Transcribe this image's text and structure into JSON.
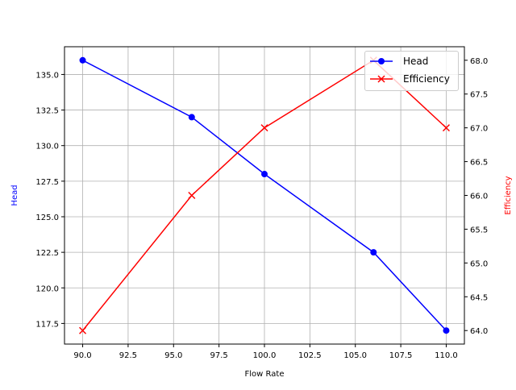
{
  "chart_data": {
    "type": "line",
    "title": "",
    "xlabel": "Flow Rate",
    "ylabel": "Head",
    "y2label": "Efficiency",
    "x": [
      90,
      96,
      100,
      106,
      110
    ],
    "series": [
      {
        "name": "Head",
        "axis": "left",
        "color": "#0000ff",
        "marker": "o",
        "values": [
          136,
          132,
          128,
          122.5,
          117
        ]
      },
      {
        "name": "Efficiency",
        "axis": "right",
        "color": "#ff0000",
        "marker": "x",
        "values": [
          64,
          66,
          67,
          68,
          67
        ]
      }
    ],
    "xticks": [
      "90.0",
      "92.5",
      "95.0",
      "97.5",
      "100.0",
      "102.5",
      "105.0",
      "107.5",
      "110.0"
    ],
    "yticks": [
      "117.5",
      "120.0",
      "122.5",
      "125.0",
      "127.5",
      "130.0",
      "132.5",
      "135.0"
    ],
    "y2ticks": [
      "64.0",
      "64.5",
      "65.0",
      "65.5",
      "66.0",
      "66.5",
      "67.0",
      "67.5",
      "68.0"
    ],
    "xlim": [
      89,
      111
    ],
    "ylim": [
      116.05,
      136.95
    ],
    "y2lim": [
      63.8,
      68.2
    ],
    "grid": true,
    "legend_position": "upper right"
  },
  "legend": {
    "head": "Head",
    "efficiency": "Efficiency"
  }
}
